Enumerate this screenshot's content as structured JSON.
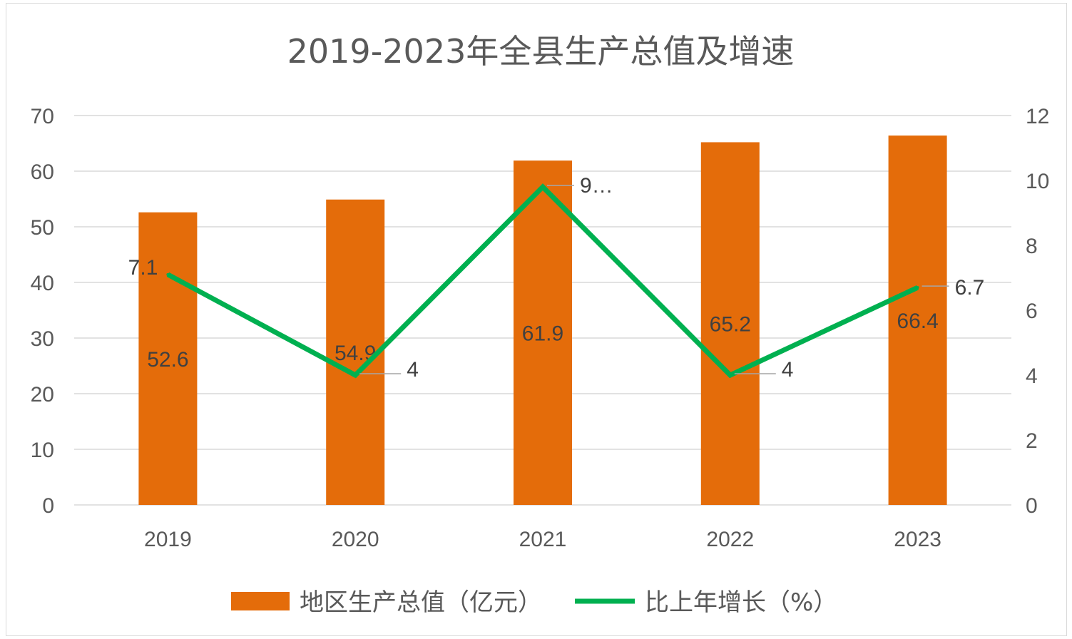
{
  "chart_data": {
    "type": "bar",
    "title": "2019-2023年全县生产总值及增速",
    "categories": [
      "2019",
      "2020",
      "2021",
      "2022",
      "2023"
    ],
    "series": [
      {
        "name": "地区生产总值（亿元）",
        "type": "bar",
        "axis": "left",
        "values": [
          52.6,
          54.9,
          61.9,
          65.2,
          66.4
        ],
        "labels": [
          "52.6",
          "54.9",
          "61.9",
          "65.2",
          "66.4"
        ],
        "color": "#E46C0A"
      },
      {
        "name": "比上年增长（%）",
        "type": "line",
        "axis": "right",
        "values": [
          7.1,
          4,
          9.8,
          4,
          6.7
        ],
        "labels": [
          "7.1",
          "4",
          "9…",
          "4",
          "6.7"
        ],
        "color": "#00B050"
      }
    ],
    "y_left": {
      "ylim": [
        0,
        70
      ],
      "ticks": [
        "0",
        "10",
        "20",
        "30",
        "40",
        "50",
        "60",
        "70"
      ]
    },
    "y_right": {
      "ylim": [
        0,
        12
      ],
      "ticks": [
        "0",
        "2",
        "4",
        "6",
        "8",
        "10",
        "12"
      ]
    },
    "grid": true,
    "legend": "bottom",
    "colors": {
      "gridline": "#D9D9D9",
      "text": "#595959",
      "label_text": "#404040",
      "leader_line": "#A6A6A6"
    }
  }
}
